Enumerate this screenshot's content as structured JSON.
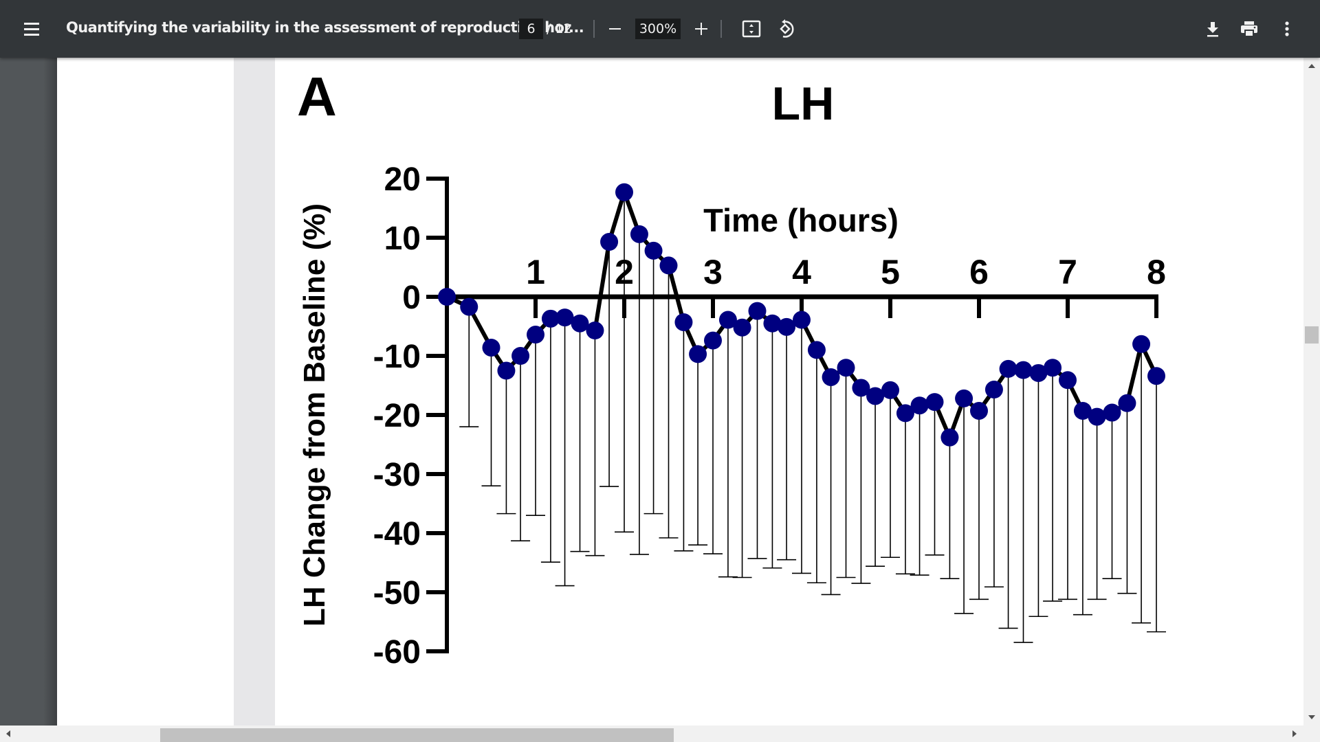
{
  "toolbar": {
    "title": "Quantifying the variability in the assessment of reproductive hor...",
    "page_current": "6",
    "page_total": "/ 12",
    "zoom_level": "300%",
    "icons": {
      "menu": "hamburger-menu-icon",
      "zoom_out": "minus-icon",
      "zoom_in": "plus-icon",
      "fit": "fit-to-page-icon",
      "rotate": "rotate-counterclockwise-icon",
      "download": "download-icon",
      "print": "print-icon",
      "more": "more-vertical-icon"
    }
  },
  "figure": {
    "panel_letter": "A",
    "title": "LH"
  },
  "colors": {
    "toolbar_bg": "#323639",
    "viewer_bg": "#525659",
    "marker": "#000080",
    "line": "#000000"
  },
  "chart_data": {
    "type": "line",
    "title": "LH",
    "xlabel": "Time (hours)",
    "ylabel": "LH Change from Baseline (%)",
    "x_ticks": [
      1,
      2,
      3,
      4,
      5,
      6,
      7,
      8
    ],
    "x_tick_labels": [
      "1",
      "2",
      "3",
      "4",
      "5",
      "6",
      "7",
      "8"
    ],
    "y_ticks": [
      20,
      10,
      0,
      -10,
      -20,
      -30,
      -40,
      -50,
      -60
    ],
    "y_tick_labels": [
      "20",
      "10",
      "0",
      "-10",
      "-20",
      "-30",
      "-40",
      "-50",
      "-60"
    ],
    "xlim": [
      0,
      8
    ],
    "ylim": [
      -60,
      20
    ],
    "x_axis_position": "y=0 (labels above axis)",
    "grid": false,
    "legend": null,
    "error_bars": "one-sided (downward), lower bound values listed",
    "series": [
      {
        "name": "LH",
        "x": [
          0,
          0.25,
          0.5,
          0.67,
          0.83,
          1.0,
          1.17,
          1.33,
          1.5,
          1.67,
          1.83,
          2.0,
          2.17,
          2.33,
          2.5,
          2.67,
          2.83,
          3.0,
          3.17,
          3.33,
          3.5,
          3.67,
          3.83,
          4.0,
          4.17,
          4.33,
          4.5,
          4.67,
          4.83,
          5.0,
          5.17,
          5.33,
          5.5,
          5.67,
          5.83,
          6.0,
          6.17,
          6.33,
          6.5,
          6.67,
          6.83,
          7.0,
          7.17,
          7.33,
          7.5,
          7.67,
          7.83,
          8.0
        ],
        "values": [
          0,
          -1.7,
          -8.6,
          -12.5,
          -10.0,
          -6.4,
          -3.7,
          -3.5,
          -4.5,
          -5.7,
          9.3,
          17.7,
          10.6,
          7.8,
          5.3,
          -4.3,
          -9.7,
          -7.4,
          -3.9,
          -5.2,
          -2.4,
          -4.5,
          -5.1,
          -3.9,
          -9.0,
          -13.6,
          -12.0,
          -15.4,
          -16.8,
          -15.8,
          -19.7,
          -18.4,
          -17.8,
          -23.8,
          -17.2,
          -19.3,
          -15.7,
          -12.2,
          -12.4,
          -12.9,
          -12.0,
          -14.1,
          -19.3,
          -20.3,
          -19.6,
          -18.0,
          -8.0,
          -13.4
        ],
        "error_lower": [
          null,
          -22.0,
          -32.0,
          -36.7,
          -41.3,
          -37.0,
          -44.9,
          -48.9,
          -43.1,
          -43.8,
          -32.1,
          -39.8,
          -43.6,
          -36.7,
          -40.8,
          -43.0,
          -42.0,
          -43.5,
          -47.4,
          -47.5,
          -44.3,
          -45.9,
          -44.5,
          -46.8,
          -48.4,
          -50.4,
          -47.5,
          -48.5,
          -45.6,
          -44.1,
          -46.9,
          -47.1,
          -43.7,
          -47.7,
          -53.6,
          -51.2,
          -49.1,
          -56.1,
          -58.5,
          -54.1,
          -51.5,
          -51.2,
          -53.8,
          -51.2,
          -47.7,
          -50.2,
          -55.2,
          -56.7
        ]
      }
    ]
  }
}
